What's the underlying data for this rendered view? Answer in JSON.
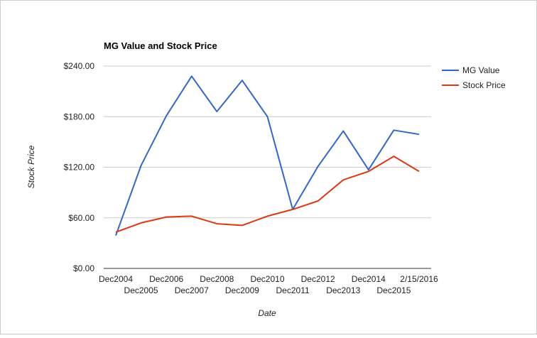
{
  "chart_data": {
    "type": "line",
    "title": "MG Value and Stock Price",
    "xlabel": "Date",
    "ylabel": "Stock Price",
    "categories": [
      "Dec2004",
      "Dec2005",
      "Dec2006",
      "Dec2007",
      "Dec2008",
      "Dec2009",
      "Dec2010",
      "Dec2011",
      "Dec2012",
      "Dec2013",
      "Dec2014",
      "Dec2015",
      "2/15/2016"
    ],
    "yticks": [
      "$0.00",
      "$60.00",
      "$120.00",
      "$180.00",
      "$240.00"
    ],
    "ylim": [
      0,
      240
    ],
    "grid": true,
    "legend_position": "right",
    "series": [
      {
        "name": "MG Value",
        "color": "#3366cc",
        "values": [
          39,
          122,
          181,
          228,
          186,
          223,
          180,
          70,
          121,
          163,
          117,
          164,
          159
        ]
      },
      {
        "name": "Stock Price",
        "color": "#dc3912",
        "values": [
          43,
          54,
          61,
          62,
          53,
          51,
          62,
          70,
          80,
          105,
          115,
          133,
          115
        ]
      }
    ]
  }
}
